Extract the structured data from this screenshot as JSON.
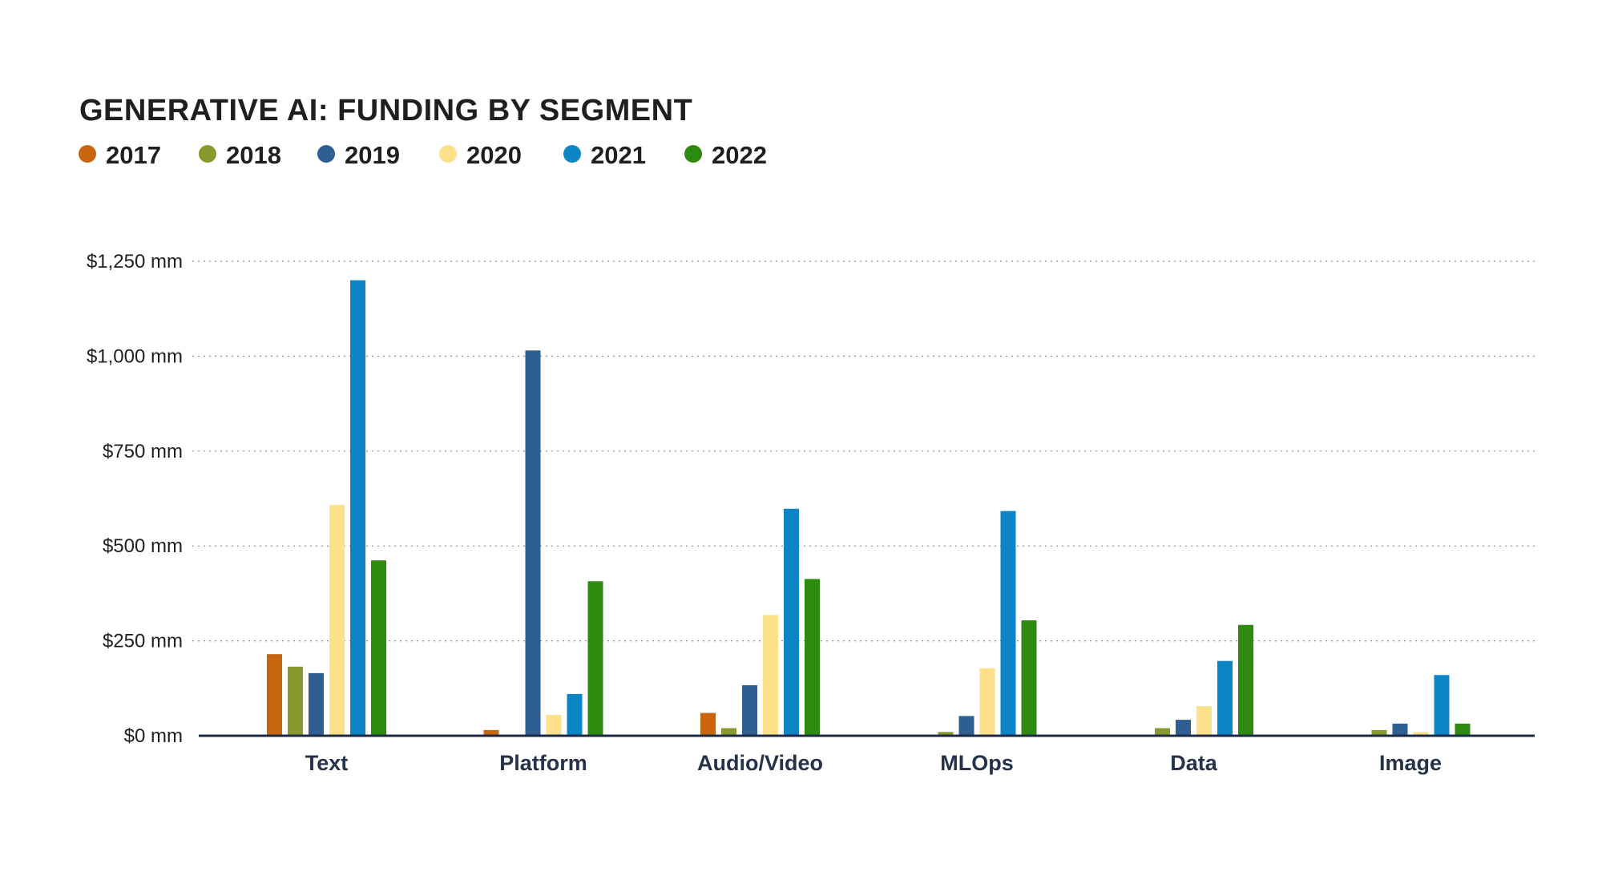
{
  "chart_data": {
    "type": "bar",
    "title": "GENERATIVE AI: FUNDING BY SEGMENT",
    "xlabel": "",
    "ylabel": "",
    "categories": [
      "Text",
      "Platform",
      "Audio/Video",
      "MLOps",
      "Data",
      "Image"
    ],
    "series": [
      {
        "name": "2017",
        "color": "#c8650f",
        "values": [
          215,
          15,
          60,
          0,
          0,
          0
        ]
      },
      {
        "name": "2018",
        "color": "#879a2e",
        "values": [
          182,
          0,
          20,
          10,
          20,
          15
        ]
      },
      {
        "name": "2019",
        "color": "#2f5e92",
        "values": [
          165,
          1015,
          133,
          52,
          42,
          32
        ]
      },
      {
        "name": "2020",
        "color": "#fde08a",
        "values": [
          608,
          55,
          318,
          178,
          78,
          10
        ]
      },
      {
        "name": "2021",
        "color": "#0c84c6",
        "values": [
          1200,
          110,
          598,
          592,
          197,
          160
        ]
      },
      {
        "name": "2022",
        "color": "#2f8a10",
        "values": [
          462,
          407,
          413,
          304,
          292,
          32
        ]
      }
    ],
    "ylim": [
      0,
      1250
    ],
    "y_ticks": [
      {
        "value": 0,
        "label": "$0 mm"
      },
      {
        "value": 250,
        "label": "$250 mm"
      },
      {
        "value": 500,
        "label": "$500 mm"
      },
      {
        "value": 750,
        "label": "$750 mm"
      },
      {
        "value": 1000,
        "label": "$1,000 mm"
      },
      {
        "value": 1250,
        "label": "$1,250 mm"
      }
    ],
    "grid": true,
    "legend_position": "top-left"
  }
}
